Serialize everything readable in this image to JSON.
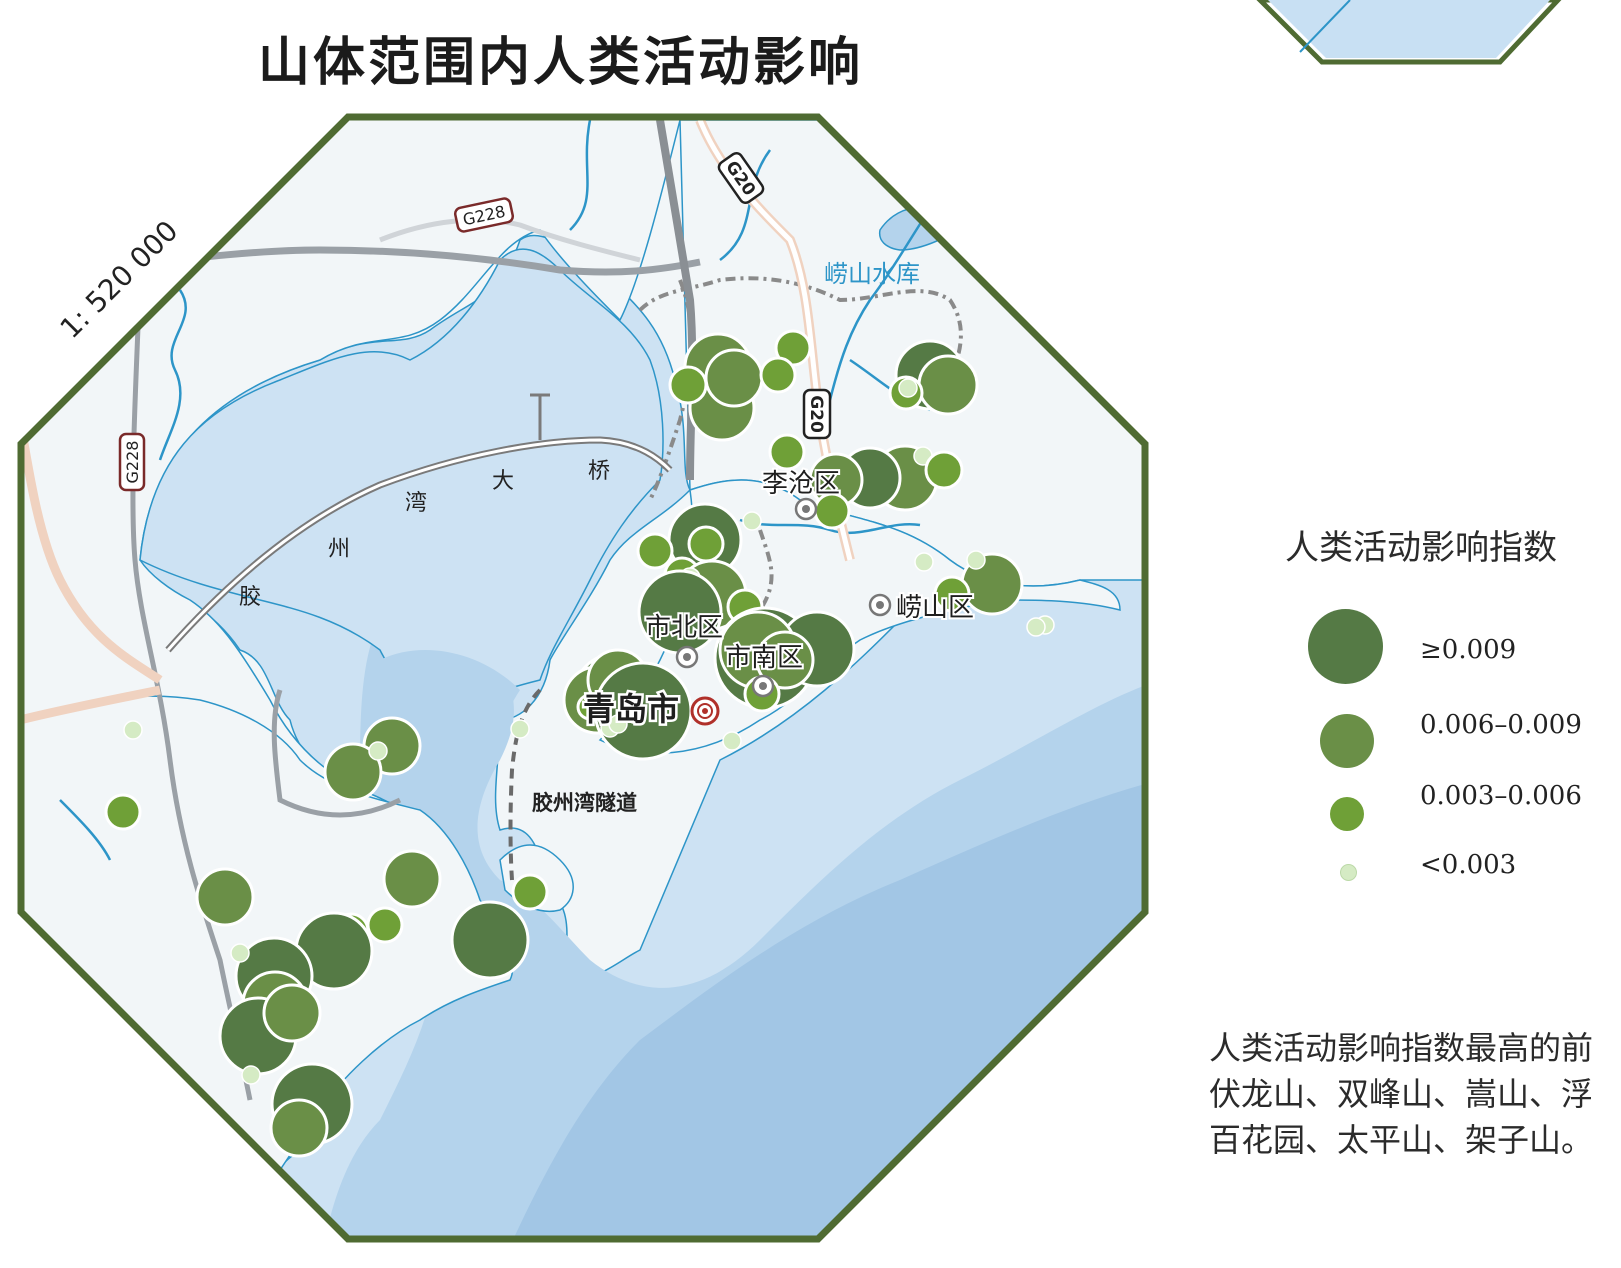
{
  "title": "山体范围内人类活动影响",
  "scale": "1: 520 000",
  "colors": {
    "sea_shallow": "#cde2f3",
    "sea_mid": "#b4d3ec",
    "sea_deep": "#a2c6e5",
    "land": "#f2f6f8",
    "frame": "#4f6b32",
    "river": "#2d95c8",
    "class1": "#557a45",
    "class2": "#6a8f47",
    "class3": "#6fa037",
    "class4": "#d5ebc4"
  },
  "roads": {
    "g228_label": "G228",
    "g20_label": "G20"
  },
  "places": {
    "city": "青岛市",
    "licang": "李沧区",
    "laoshan": "崂山区",
    "shibei": "市北区",
    "shinan": "市南区",
    "reservoir": "崂山水库",
    "tunnel": "胶州湾隧道",
    "bridge_chars": [
      "胶",
      "州",
      "湾",
      "大",
      "桥"
    ]
  },
  "legend": {
    "title": "人类活动影响指数",
    "classes": [
      {
        "label": "≥0.009",
        "color": "#557a45"
      },
      {
        "label": "0.006–0.009",
        "color": "#6a8f47"
      },
      {
        "label": "0.003–0.006",
        "color": "#6fa037"
      },
      {
        "label": "<0.003",
        "color": "#d5ebc4"
      }
    ]
  },
  "note_lines": [
    "人类活动影响指数最高的前",
    "伏龙山、双峰山、嵩山、浮",
    "百花园、太平山、架子山。"
  ]
}
